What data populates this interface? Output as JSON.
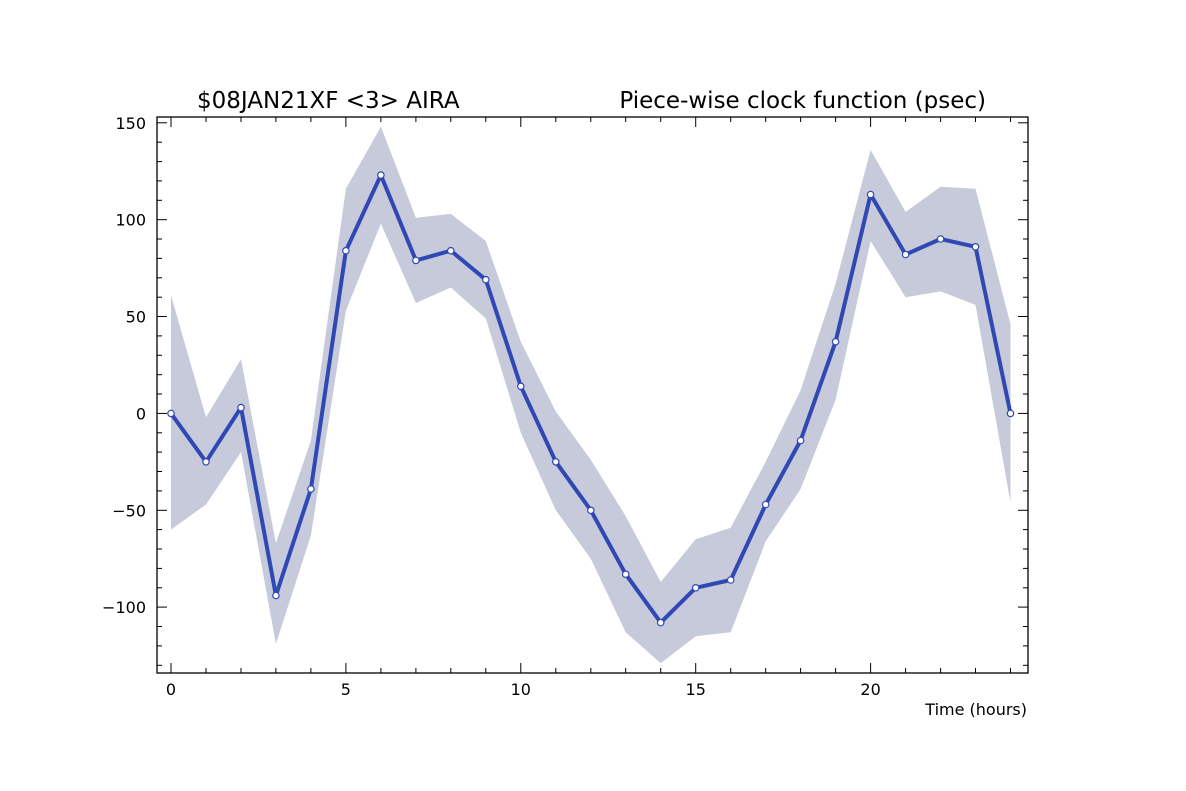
{
  "chart_data": {
    "type": "line",
    "title_left": "$08JAN21XF <3>  AIRA",
    "title_right": "Piece-wise clock function (psec)",
    "xlabel": "Time (hours)",
    "ylabel": "",
    "xlim": [
      -0.4,
      24.5
    ],
    "ylim": [
      -134,
      153
    ],
    "x_ticks": [
      0,
      5,
      10,
      15,
      20
    ],
    "y_ticks": [
      -100,
      -50,
      0,
      50,
      100,
      150
    ],
    "grid": false,
    "colors": {
      "line": "#2f48b4",
      "band": "#c6cadb",
      "marker_fill": "#ffffff",
      "marker_edge": "#2f48b4"
    },
    "series": [
      {
        "x": [
          0,
          1,
          2,
          3,
          4,
          5,
          6,
          7,
          8,
          9,
          10,
          11,
          12,
          13,
          14,
          15,
          16,
          17,
          18,
          19,
          20,
          21,
          22,
          23,
          24
        ],
        "values": [
          0,
          -25,
          3,
          -94,
          -39,
          84,
          123,
          79,
          84,
          69,
          14,
          -25,
          -50,
          -83,
          -108,
          -90,
          -86,
          -47,
          -14,
          37,
          113,
          82,
          90,
          86,
          0
        ],
        "upper": [
          61,
          -2,
          28,
          -67,
          -14,
          116,
          148,
          101,
          103,
          89,
          37,
          1,
          -24,
          -53,
          -87,
          -65,
          -59,
          -25,
          12,
          67,
          136,
          104,
          117,
          116,
          46
        ],
        "lower": [
          -60,
          -47,
          -20,
          -119,
          -63,
          53,
          98,
          57,
          65,
          49,
          -10,
          -50,
          -75,
          -113,
          -129,
          -115,
          -113,
          -66,
          -39,
          7,
          89,
          60,
          63,
          56,
          -46
        ]
      }
    ]
  }
}
